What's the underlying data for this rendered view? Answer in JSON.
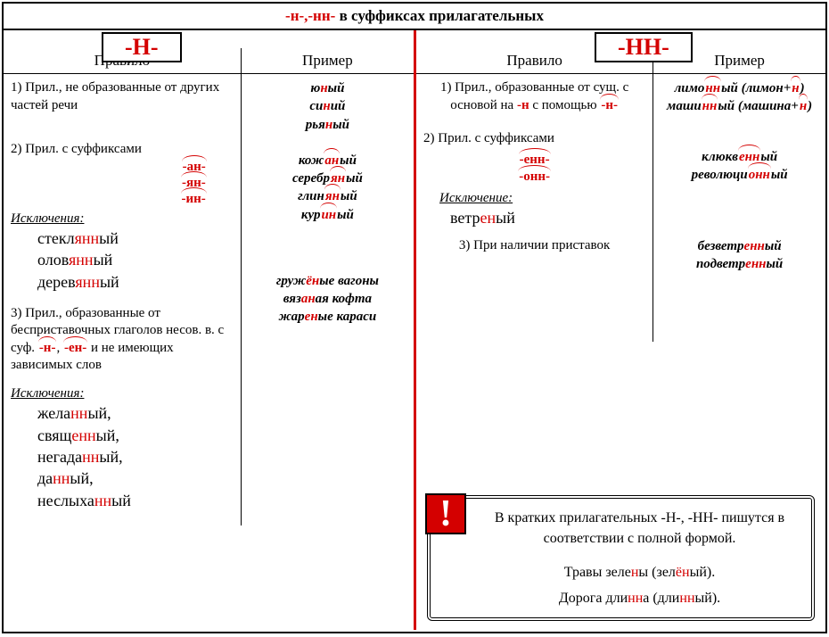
{
  "title": {
    "prefix": "-н-,-нн-",
    "rest": " в суффиксах прилагательных"
  },
  "headers": {
    "n": "-Н-",
    "nn": "-НН-",
    "rule": "Правило",
    "example": "Пример"
  },
  "colors": {
    "red": "#d40000",
    "black": "#000000",
    "bg": "#ffffff"
  },
  "left": {
    "rule1": "1) Прил., не образованные от других частей речи",
    "ex1": [
      [
        {
          "t": "ю",
          "r": false
        },
        {
          "t": "н",
          "r": true
        },
        {
          "t": "ый",
          "r": false
        }
      ],
      [
        {
          "t": "си",
          "r": false
        },
        {
          "t": "н",
          "r": true
        },
        {
          "t": "ий",
          "r": false
        }
      ],
      [
        {
          "t": "рья",
          "r": false
        },
        {
          "t": "н",
          "r": true
        },
        {
          "t": "ый",
          "r": false
        }
      ]
    ],
    "rule2_a": "2) Прил. с суффиксами",
    "rule2_suffixes": [
      "-ан-",
      "-ян-",
      "-ин-"
    ],
    "ex2": [
      [
        {
          "t": "кож",
          "r": false
        },
        {
          "t": "ан",
          "r": true,
          "arc": true
        },
        {
          "t": "ый",
          "r": false
        }
      ],
      [
        {
          "t": "серебр",
          "r": false
        },
        {
          "t": "ян",
          "r": true,
          "arc": true
        },
        {
          "t": "ый",
          "r": false
        }
      ],
      [
        {
          "t": "глин",
          "r": false
        },
        {
          "t": "ян",
          "r": true,
          "arc": true
        },
        {
          "t": "ый",
          "r": false
        }
      ],
      [
        {
          "t": "кур",
          "r": false
        },
        {
          "t": "ин",
          "r": true,
          "arc": true
        },
        {
          "t": "ый",
          "r": false
        }
      ]
    ],
    "excl_label": "Исключения:",
    "excl2": [
      [
        {
          "t": "стекл",
          "r": false
        },
        {
          "t": "янн",
          "r": true
        },
        {
          "t": "ый",
          "r": false
        }
      ],
      [
        {
          "t": "олов",
          "r": false
        },
        {
          "t": "янн",
          "r": true
        },
        {
          "t": "ый",
          "r": false
        }
      ],
      [
        {
          "t": "дерев",
          "r": false
        },
        {
          "t": "янн",
          "r": true
        },
        {
          "t": "ый",
          "r": false
        }
      ]
    ],
    "rule3_a": "3) Прил., образованные от бесприставочных глаголов несов. в. с суф. ",
    "rule3_s1": "-н-",
    "rule3_s2": "-ен-",
    "rule3_b": " и не имеющих зависимых слов",
    "ex3": [
      [
        {
          "t": "груж",
          "r": false
        },
        {
          "t": "ён",
          "r": true
        },
        {
          "t": "ые вагоны",
          "r": false
        }
      ],
      [
        {
          "t": "вяз",
          "r": false
        },
        {
          "t": "ан",
          "r": true
        },
        {
          "t": "ая кофта",
          "r": false
        }
      ],
      [
        {
          "t": "жар",
          "r": false
        },
        {
          "t": "ен",
          "r": true
        },
        {
          "t": "ые караси",
          "r": false
        }
      ]
    ],
    "excl3": [
      [
        {
          "t": "жела",
          "r": false
        },
        {
          "t": "нн",
          "r": true
        },
        {
          "t": "ый,",
          "r": false
        }
      ],
      [
        {
          "t": "свящ",
          "r": false
        },
        {
          "t": "енн",
          "r": true
        },
        {
          "t": "ый,",
          "r": false
        }
      ],
      [
        {
          "t": "негада",
          "r": false
        },
        {
          "t": "нн",
          "r": true
        },
        {
          "t": "ый,",
          "r": false
        }
      ],
      [
        {
          "t": "да",
          "r": false
        },
        {
          "t": "нн",
          "r": true
        },
        {
          "t": "ый,",
          "r": false
        }
      ],
      [
        {
          "t": "неслыха",
          "r": false
        },
        {
          "t": "нн",
          "r": true
        },
        {
          "t": "ый",
          "r": false
        }
      ]
    ]
  },
  "right": {
    "rule1_a": "1) Прил., образованные от сущ. с основой на ",
    "rule1_n": "-н",
    "rule1_b": " с помощью ",
    "rule1_suf": "-н-",
    "ex1": [
      [
        {
          "t": "лимо",
          "r": false
        },
        {
          "t": "нн",
          "r": true,
          "arc": true
        },
        {
          "t": "ый (лимон+",
          "r": false
        },
        {
          "t": "н",
          "r": true,
          "arc": true
        },
        {
          "t": ")",
          "r": false
        }
      ],
      [
        {
          "t": "маши",
          "r": false
        },
        {
          "t": "нн",
          "r": true,
          "arc": true
        },
        {
          "t": "ый (машина+",
          "r": false
        },
        {
          "t": "н",
          "r": true,
          "arc": true
        },
        {
          "t": ")",
          "r": false
        }
      ]
    ],
    "rule2_a": "2) Прил. с суффиксами",
    "rule2_suffixes": [
      "-енн-",
      "-онн-"
    ],
    "ex2": [
      [
        {
          "t": "клюкв",
          "r": false
        },
        {
          "t": "енн",
          "r": true,
          "arc": true
        },
        {
          "t": "ый",
          "r": false
        }
      ],
      [
        {
          "t": "революци",
          "r": false
        },
        {
          "t": "онн",
          "r": true,
          "arc": true
        },
        {
          "t": "ый",
          "r": false
        }
      ]
    ],
    "excl_label": "Исключение:",
    "excl2": [
      [
        {
          "t": "ветр",
          "r": false
        },
        {
          "t": "ен",
          "r": true
        },
        {
          "t": "ый",
          "r": false
        }
      ]
    ],
    "rule3": "3) При наличии приставок",
    "ex3": [
      [
        {
          "t": "безветр",
          "r": false
        },
        {
          "t": "енн",
          "r": true
        },
        {
          "t": "ый",
          "r": false
        }
      ],
      [
        {
          "t": "подветр",
          "r": false
        },
        {
          "t": "енн",
          "r": true
        },
        {
          "t": "ый",
          "r": false
        }
      ]
    ]
  },
  "note": {
    "bang": "!",
    "line1": "В кратких прилагательных -Н-, -НН- пишутся в соответствии с полной формой.",
    "ex1": [
      {
        "t": "Травы зеле",
        "r": false
      },
      {
        "t": "н",
        "r": true
      },
      {
        "t": "ы (зел",
        "r": false
      },
      {
        "t": "ён",
        "r": true
      },
      {
        "t": "ый).",
        "r": false
      }
    ],
    "ex2": [
      {
        "t": "Дорога дли",
        "r": false
      },
      {
        "t": "нн",
        "r": true
      },
      {
        "t": "а (дли",
        "r": false
      },
      {
        "t": "нн",
        "r": true
      },
      {
        "t": "ый).",
        "r": false
      }
    ]
  }
}
